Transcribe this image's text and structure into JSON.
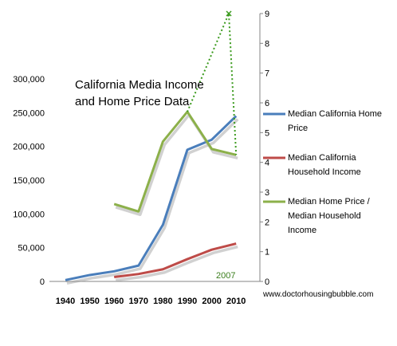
{
  "chart_data": {
    "type": "line",
    "title": [
      "California Media Income",
      "and Home Price Data"
    ],
    "x": [
      1940,
      1950,
      1960,
      1970,
      1980,
      1990,
      2000,
      2010
    ],
    "x_tick_labels": [
      "1940",
      "1950",
      "1960",
      "1970",
      "1980",
      "1990",
      "2000",
      "2010"
    ],
    "y_left": {
      "ylim": [
        0,
        300000
      ],
      "ticks": [
        0,
        50000,
        100000,
        150000,
        200000,
        250000,
        300000
      ],
      "tick_labels": [
        "0",
        "50,000",
        "100,000",
        "150,000",
        "200,000",
        "250,000",
        "300,000"
      ]
    },
    "y_right": {
      "ylim": [
        0,
        9
      ],
      "ticks": [
        0,
        1,
        2,
        3,
        4,
        5,
        6,
        7,
        8,
        9
      ],
      "tick_labels": [
        "0",
        "1",
        "2",
        "3",
        "4",
        "5",
        "6",
        "7",
        "8",
        "9"
      ]
    },
    "series": [
      {
        "name": "Median California Home Price",
        "legend_lines": [
          "Median California Home",
          "Price"
        ],
        "axis": "left",
        "color": "#4a7ebb",
        "x": [
          1940,
          1950,
          1960,
          1970,
          1980,
          1990,
          2000,
          2010
        ],
        "values": [
          2000,
          9500,
          15000,
          23500,
          84000,
          195000,
          210000,
          245000
        ]
      },
      {
        "name": "Median California Household Income",
        "legend_lines": [
          "Median California",
          "Household Income"
        ],
        "axis": "left",
        "color": "#be4b48",
        "x": [
          1960,
          1970,
          1980,
          1990,
          2000,
          2010
        ],
        "values": [
          6500,
          11000,
          18000,
          33000,
          47000,
          56000
        ]
      },
      {
        "name": "Median Home Price / Median Household Income",
        "legend_lines": [
          "Median Home Price /",
          "Median Household",
          "Income"
        ],
        "axis": "right",
        "color": "#8cb04a",
        "x": [
          1960,
          1970,
          1980,
          1990,
          2000,
          2010
        ],
        "values": [
          2.6,
          2.35,
          4.7,
          5.7,
          4.45,
          4.25
        ]
      }
    ],
    "annotation": {
      "text": "2007",
      "dotted_path": {
        "axis": "right",
        "x": [
          1990,
          2007,
          2010
        ],
        "values": [
          5.7,
          9.0,
          4.25
        ]
      },
      "marker": "x"
    },
    "credit": "www.doctorhousingbubble.com",
    "grid": false,
    "legend": "right"
  }
}
